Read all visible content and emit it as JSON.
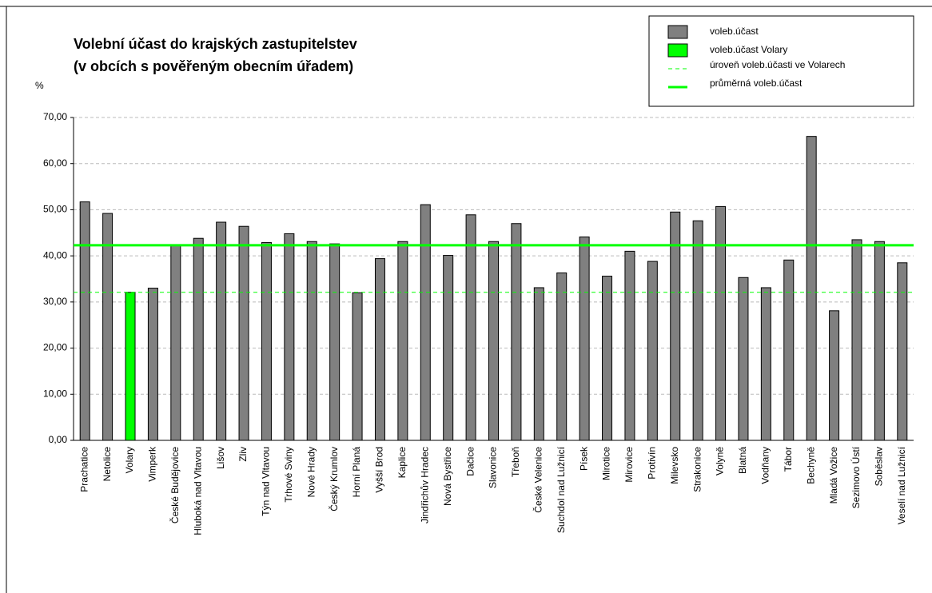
{
  "chart_data": {
    "type": "bar",
    "title": [
      "Volební účast do krajských zastupitelstev",
      "(v obcích s pověřeným obecním úřadem)"
    ],
    "y_label": "%",
    "categories": [
      "Prachatice",
      "Netolice",
      "Volary",
      "Vimperk",
      "České Budějovice",
      "Hluboká nad Vltavou",
      "Lišov",
      "Zliv",
      "Týn nad Vltavou",
      "Trhové Sviny",
      "Nové Hrady",
      "Český Krumlov",
      "Horní Planá",
      "Vyšší Brod",
      "Kaplice",
      "Jindřichův Hradec",
      "Nová Bystřice",
      "Dačice",
      "Slavonice",
      "Třeboň",
      "České Velenice",
      "Suchdol nad Lužnicí",
      "Písek",
      "Mirotice",
      "Mirovice",
      "Protivín",
      "Milevsko",
      "Strakonice",
      "Volyně",
      "Blatná",
      "Vodňany",
      "Tábor",
      "Bechyně",
      "Mladá Vožice",
      "Sezimovo Ústí",
      "Soběslav",
      "Veselí nad Lužnicí"
    ],
    "series": [
      {
        "name": "voleb.účast",
        "color": "#808080",
        "values": [
          51.7,
          49.2,
          null,
          33.0,
          42.4,
          43.8,
          47.3,
          46.4,
          42.9,
          44.8,
          43.1,
          42.6,
          32.0,
          39.4,
          43.1,
          51.1,
          40.1,
          48.9,
          43.1,
          47.0,
          33.1,
          36.3,
          44.1,
          35.6,
          41.0,
          38.8,
          49.5,
          47.6,
          50.7,
          35.3,
          33.1,
          39.1,
          65.9,
          28.1,
          43.5,
          43.1,
          38.5
        ]
      },
      {
        "name": "voleb.účast Volary",
        "color": "#00ff00",
        "values": [
          null,
          null,
          32.1,
          null,
          null,
          null,
          null,
          null,
          null,
          null,
          null,
          null,
          null,
          null,
          null,
          null,
          null,
          null,
          null,
          null,
          null,
          null,
          null,
          null,
          null,
          null,
          null,
          null,
          null,
          null,
          null,
          null,
          null,
          null,
          null,
          null,
          null
        ]
      }
    ],
    "reference_lines": [
      {
        "name": "úroveň voleb.účasti ve Volarech",
        "value": 32.1,
        "color": "#00ff00",
        "dashed": true
      },
      {
        "name": "průměrná voleb.účast",
        "value": 42.3,
        "color": "#00ff00",
        "dashed": false
      }
    ],
    "ylim": [
      0,
      70
    ],
    "yticks": [
      {
        "value": 0,
        "label": "0,00"
      },
      {
        "value": 10,
        "label": "10,00"
      },
      {
        "value": 20,
        "label": "20,00"
      },
      {
        "value": 30,
        "label": "30,00"
      },
      {
        "value": 40,
        "label": "40,00"
      },
      {
        "value": 50,
        "label": "50,00"
      },
      {
        "value": 60,
        "label": "60,00"
      },
      {
        "value": 70,
        "label": "70,00"
      }
    ],
    "grid": true
  }
}
